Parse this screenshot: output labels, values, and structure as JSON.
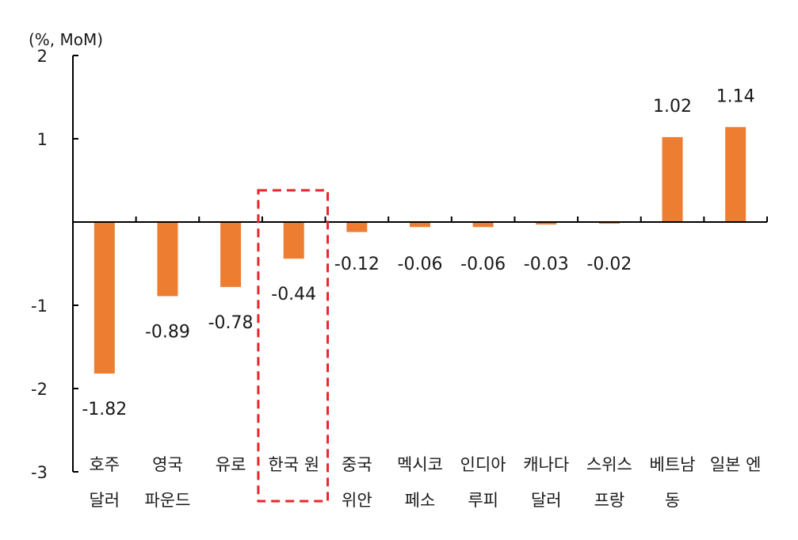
{
  "chart_data": {
    "type": "bar",
    "unit_label": "(%, MoM)",
    "categories": [
      [
        "호주",
        "달러"
      ],
      [
        "영국",
        "파운드"
      ],
      [
        "유로"
      ],
      [
        "한국 원"
      ],
      [
        "중국",
        "위안"
      ],
      [
        "멕시코",
        "페소"
      ],
      [
        "인디아",
        "루피"
      ],
      [
        "캐나다",
        "달러"
      ],
      [
        "스위스",
        "프랑"
      ],
      [
        "베트남",
        "동"
      ],
      [
        "일본 엔"
      ]
    ],
    "values": [
      -1.82,
      -0.89,
      -0.78,
      -0.44,
      -0.12,
      -0.06,
      -0.06,
      -0.03,
      -0.02,
      1.02,
      1.14
    ],
    "data_labels": [
      "-1.82",
      "-0.89",
      "-0.78",
      "-0.44",
      "-0.12",
      "-0.06",
      "-0.06",
      "-0.03",
      "-0.02",
      "1.02",
      "1.14"
    ],
    "yticks": [
      "2",
      "1",
      "-1",
      "-2",
      "-3"
    ],
    "ylim": [
      -3,
      2
    ],
    "bar_color": "#ED7D31",
    "highlight_color": "#E8262B",
    "highlight_category": "한국 원",
    "grid": false
  }
}
